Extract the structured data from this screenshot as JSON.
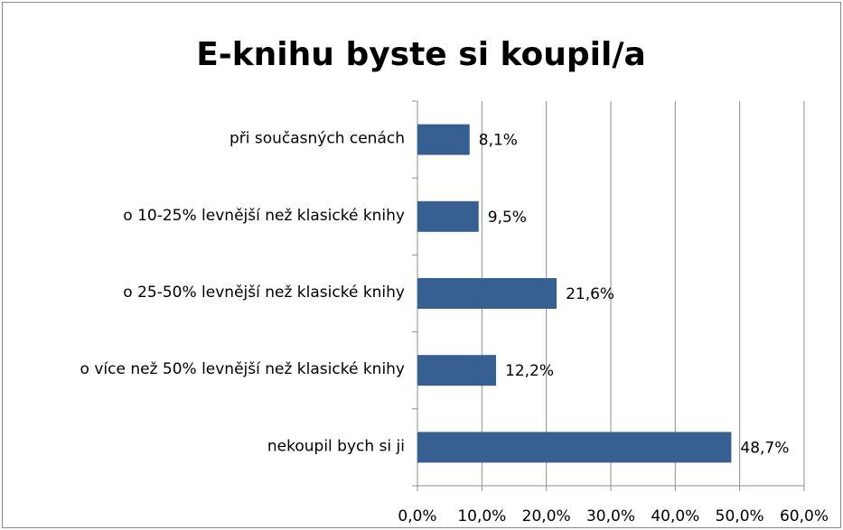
{
  "chart_data": {
    "type": "bar",
    "orientation": "horizontal",
    "title": "E-knihu byste si koupil/a",
    "categories": [
      "při současných cenách",
      "o 10-25% levnější než klasické knihy",
      "o 25-50% levnější než klasické knihy",
      "o více než 50% levnější než klasické knihy",
      "nekoupil bych si ji"
    ],
    "values": [
      8.1,
      9.5,
      21.6,
      12.2,
      48.7
    ],
    "value_labels": [
      "8,1%",
      "9,5%",
      "21,6%",
      "12,2%",
      "48,7%"
    ],
    "color": "#376092",
    "xlim": [
      0,
      60
    ],
    "xticks": [
      {
        "value": 0,
        "label": "0,0%"
      },
      {
        "value": 10,
        "label": "10,0%"
      },
      {
        "value": 20,
        "label": "20,0%"
      },
      {
        "value": 30,
        "label": "30,0%"
      },
      {
        "value": 40,
        "label": "40,0%"
      },
      {
        "value": 50,
        "label": "50,0%"
      },
      {
        "value": 60,
        "label": "60,0%"
      }
    ],
    "grid": true
  }
}
